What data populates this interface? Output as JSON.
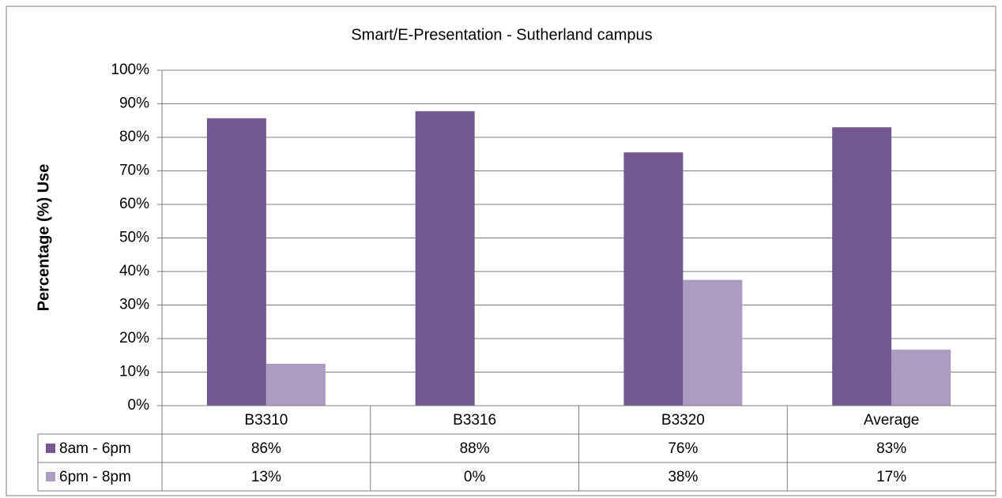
{
  "chart_data": {
    "type": "bar",
    "title": "Smart/E-Presentation - Sutherland campus",
    "y_label": "Percentage (%) Use",
    "categories": [
      "B3310",
      "B3316",
      "B3320",
      "Average"
    ],
    "series": [
      {
        "name": "8am - 6pm",
        "color": "#725990",
        "values": [
          85.7,
          87.8,
          75.5,
          83.0
        ],
        "value_labels": [
          "86%",
          "88%",
          "76%",
          "83%"
        ]
      },
      {
        "name": "6pm - 8pm",
        "color": "#ab9cc1",
        "values": [
          12.5,
          0,
          37.5,
          16.7
        ],
        "value_labels": [
          "13%",
          "0%",
          "38%",
          "17%"
        ]
      }
    ],
    "ylim": [
      0,
      100
    ],
    "yticks": [
      {
        "value": 0,
        "label": "0%"
      },
      {
        "value": 10,
        "label": "10%"
      },
      {
        "value": 20,
        "label": "20%"
      },
      {
        "value": 30,
        "label": "30%"
      },
      {
        "value": 40,
        "label": "40%"
      },
      {
        "value": 50,
        "label": "50%"
      },
      {
        "value": 60,
        "label": "60%"
      },
      {
        "value": 70,
        "label": "70%"
      },
      {
        "value": 80,
        "label": "80%"
      },
      {
        "value": 90,
        "label": "90%"
      },
      {
        "value": 100,
        "label": "100%"
      }
    ],
    "grid": true
  }
}
